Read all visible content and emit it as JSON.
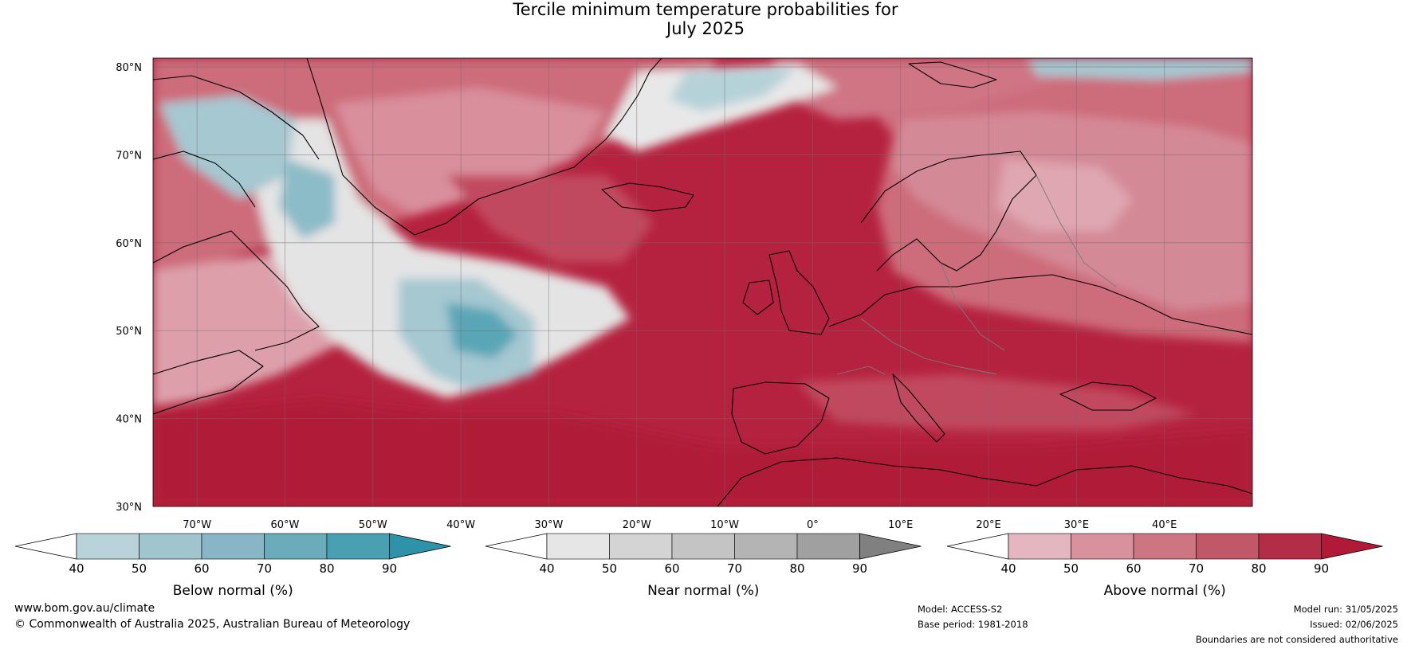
{
  "title": {
    "line1": "Tercile minimum temperature probabilities for",
    "line2": "July 2025"
  },
  "map": {
    "lat_ticks": [
      "30°N",
      "40°N",
      "50°N",
      "60°N",
      "70°N",
      "80°N"
    ],
    "lon_ticks": [
      "70°W",
      "60°W",
      "50°W",
      "40°W",
      "30°W",
      "20°W",
      "10°W",
      "0°",
      "10°E",
      "20°E",
      "30°E",
      "40°E"
    ],
    "extent": {
      "lon_min": -75,
      "lon_max": 50,
      "lat_min": 30,
      "lat_max": 81
    }
  },
  "legends": [
    {
      "key": "below",
      "label": "Below normal (%)",
      "ticks": [
        "40",
        "50",
        "60",
        "70",
        "80",
        "90"
      ],
      "colors": [
        "#ffffff",
        "#b9d3da",
        "#a1c5cf",
        "#88b6c6",
        "#6aacb9",
        "#4aa0b3",
        "#2e93a8"
      ]
    },
    {
      "key": "near",
      "label": "Near normal (%)",
      "ticks": [
        "40",
        "50",
        "60",
        "70",
        "80",
        "90"
      ],
      "colors": [
        "#ffffff",
        "#e6e6e6",
        "#d4d4d4",
        "#c4c4c4",
        "#b4b4b4",
        "#a0a0a0",
        "#808080"
      ]
    },
    {
      "key": "above",
      "label": "Above normal (%)",
      "ticks": [
        "40",
        "50",
        "60",
        "70",
        "80",
        "90"
      ],
      "colors": [
        "#ffffff",
        "#e4b6bf",
        "#d8929d",
        "#cd7581",
        "#c05867",
        "#b32d46",
        "#b01a38"
      ]
    }
  ],
  "footer": {
    "site": "www.bom.gov.au/climate",
    "copyright": "© Commonwealth of Australia 2025, Australian Bureau of Meteorology",
    "model": "Model: ACCESS-S2",
    "base_period": "Base period: 1981-2018",
    "model_run": "Model run: 31/05/2025",
    "issued": "Issued: 02/06/2025",
    "disclaimer": "Boundaries are not considered authoritative"
  }
}
